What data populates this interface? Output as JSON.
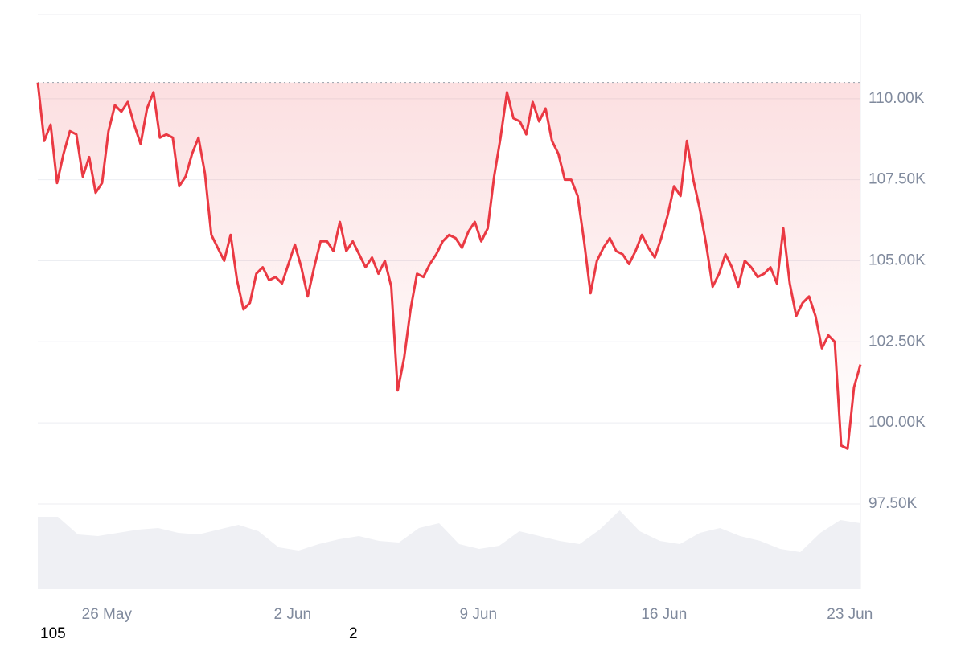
{
  "chart_data": {
    "type": "line",
    "xlim": [
      0,
      31
    ],
    "xticks": [
      {
        "value": 2.6,
        "label": "26 May"
      },
      {
        "value": 9.6,
        "label": "2 Jun"
      },
      {
        "value": 16.6,
        "label": "9 Jun"
      },
      {
        "value": 23.6,
        "label": "16 Jun"
      },
      {
        "value": 30.6,
        "label": "23 Jun"
      }
    ],
    "ylim": [
      94870,
      112600
    ],
    "yticks": [
      {
        "value": 97500,
        "label": "97.50K"
      },
      {
        "value": 100000,
        "label": "100.00K"
      },
      {
        "value": 102500,
        "label": "102.50K"
      },
      {
        "value": 105000,
        "label": "105.00K"
      },
      {
        "value": 107500,
        "label": "107.50K"
      },
      {
        "value": 110000,
        "label": "110.00K"
      }
    ],
    "y2lim": [
      0,
      715
    ],
    "grid": true,
    "series": [
      {
        "name": "Price",
        "color": "#ea3943",
        "up_color": "#16c784",
        "values": [
          110500,
          108700,
          109200,
          107400,
          108300,
          109000,
          108900,
          107600,
          108200,
          107100,
          107400,
          109000,
          109800,
          109600,
          109900,
          109200,
          108600,
          109700,
          110200,
          108800,
          108900,
          108800,
          107300,
          107600,
          108300,
          108800,
          107700,
          105800,
          105400,
          105000,
          105800,
          104400,
          103500,
          103700,
          104600,
          104800,
          104400,
          104500,
          104300,
          104900,
          105500,
          104800,
          103900,
          104800,
          105600,
          105600,
          105300,
          106200,
          105300,
          105600,
          105200,
          104800,
          105100,
          104600,
          105000,
          104200,
          101000,
          102000,
          103500,
          104600,
          104500,
          104900,
          105200,
          105600,
          105800,
          105700,
          105400,
          105900,
          106200,
          105600,
          106000,
          107600,
          108800,
          110200,
          109400,
          109300,
          108900,
          109900,
          109300,
          109700,
          108700,
          108300,
          107500,
          107500,
          107000,
          105600,
          104000,
          105000,
          105400,
          105700,
          105300,
          105200,
          104900,
          105300,
          105800,
          105400,
          105100,
          105700,
          106400,
          107300,
          107000,
          108700,
          107500,
          106600,
          105500,
          104200,
          104600,
          105200,
          104800,
          104200,
          105000,
          104800,
          104500,
          104600,
          104800,
          104300,
          106000,
          104300,
          103300,
          103700,
          103900,
          103300,
          102300,
          102700,
          102500,
          99300,
          99200,
          101100,
          101800
        ]
      },
      {
        "name": "Volume",
        "color": "#eff0f4",
        "axis": "y2",
        "values": [
          90,
          90,
          68,
          66,
          70,
          74,
          76,
          70,
          68,
          74,
          80,
          72,
          52,
          48,
          56,
          62,
          66,
          60,
          58,
          76,
          82,
          56,
          50,
          54,
          72,
          66,
          60,
          56,
          74,
          98,
          72,
          60,
          56,
          70,
          76,
          66,
          60,
          50,
          46,
          70,
          86,
          82
        ]
      }
    ]
  },
  "footer_labels": [
    "105",
    "2"
  ]
}
